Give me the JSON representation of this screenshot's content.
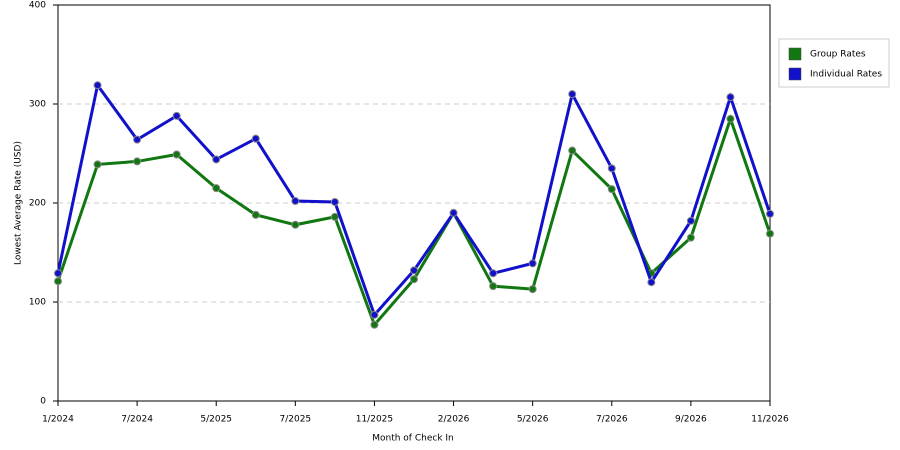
{
  "chart_data": {
    "type": "line",
    "x_label": "Month of Check In",
    "y_label": "Lowest Average Rate (USD)",
    "categories": [
      "1/2024",
      null,
      "7/2024",
      null,
      "5/2025",
      null,
      "7/2025",
      null,
      "11/2025",
      null,
      "2/2026",
      null,
      "5/2026",
      null,
      "7/2026",
      null,
      "9/2026",
      null,
      "11/2026"
    ],
    "series": [
      {
        "name": "Group Rates",
        "color": "#117711",
        "values": [
          121,
          239,
          242,
          249,
          215,
          188,
          178,
          186,
          77,
          123,
          190,
          116,
          113,
          253,
          214,
          129,
          165,
          285,
          169
        ]
      },
      {
        "name": "Individual Rates",
        "color": "#1111cc",
        "values": [
          129,
          319,
          264,
          288,
          244,
          265,
          202,
          201,
          87,
          132,
          190,
          129,
          139,
          310,
          235,
          120,
          182,
          307,
          189
        ]
      }
    ],
    "ylim": [
      0,
      400
    ],
    "yticks": [
      0,
      100,
      200,
      300,
      400
    ],
    "grid": true,
    "legend": "right"
  }
}
